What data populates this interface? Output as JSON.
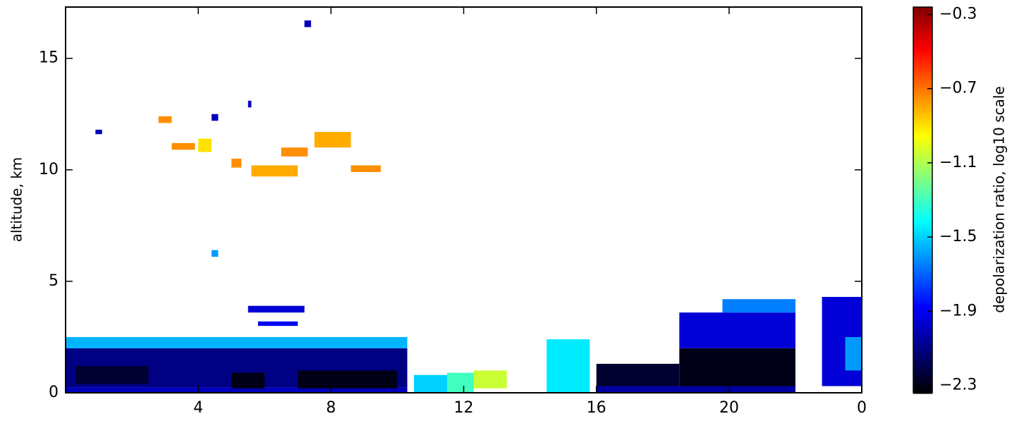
{
  "chart_data": {
    "type": "heatmap",
    "ylabel": "altitude, km",
    "colorbar_label": "depolarization ratio, log10 scale",
    "xlim": [
      0,
      24
    ],
    "ylim": [
      0,
      17.3
    ],
    "xticks": [
      4,
      8,
      12,
      16,
      20,
      {
        "value": 24,
        "label": "0"
      }
    ],
    "yticks": [
      0,
      5,
      10,
      15
    ],
    "clim": [
      -2.34,
      -0.26
    ],
    "cticks": [
      {
        "value": -2.3,
        "label": "−2.3"
      },
      {
        "value": -1.9,
        "label": "−1.9"
      },
      {
        "value": -1.5,
        "label": "−1.5"
      },
      {
        "value": -1.1,
        "label": "−1.1"
      },
      {
        "value": -0.7,
        "label": "−0.7"
      },
      {
        "value": -0.3,
        "label": "−0.3"
      }
    ],
    "colormap": [
      "#000000",
      "#00007f",
      "#0000ff",
      "#0080ff",
      "#00ffff",
      "#80ff80",
      "#ffff00",
      "#ff8000",
      "#ff0000",
      "#800000"
    ],
    "cells": [
      {
        "x": [
          0,
          10.3
        ],
        "y": [
          0,
          0.25
        ],
        "value": -2.0
      },
      {
        "x": [
          0,
          10.3
        ],
        "y": [
          0.25,
          2.0
        ],
        "value": -2.1
      },
      {
        "x": [
          0,
          10.3
        ],
        "y": [
          2.0,
          2.5
        ],
        "value": -1.55
      },
      {
        "x": [
          5.0,
          6.0
        ],
        "y": [
          0.2,
          0.9
        ],
        "value": -2.3
      },
      {
        "x": [
          7.0,
          10.0
        ],
        "y": [
          0.2,
          1.0
        ],
        "value": -2.3
      },
      {
        "x": [
          0.3,
          2.5
        ],
        "y": [
          0.4,
          1.2
        ],
        "value": -2.25
      },
      {
        "x": [
          5.5,
          7.2
        ],
        "y": [
          3.6,
          3.9
        ],
        "value": -1.95
      },
      {
        "x": [
          5.8,
          7.0
        ],
        "y": [
          3.0,
          3.2
        ],
        "value": -1.9
      },
      {
        "x": [
          4.4,
          4.6
        ],
        "y": [
          6.1,
          6.4
        ],
        "value": -1.6
      },
      {
        "x": [
          2.8,
          3.2
        ],
        "y": [
          12.1,
          12.4
        ],
        "value": -0.75
      },
      {
        "x": [
          3.2,
          3.9
        ],
        "y": [
          10.9,
          11.2
        ],
        "value": -0.75
      },
      {
        "x": [
          4.0,
          4.4
        ],
        "y": [
          10.8,
          11.4
        ],
        "value": -0.9
      },
      {
        "x": [
          5.0,
          5.3
        ],
        "y": [
          10.1,
          10.5
        ],
        "value": -0.75
      },
      {
        "x": [
          5.6,
          7.0
        ],
        "y": [
          9.7,
          10.2
        ],
        "value": -0.8
      },
      {
        "x": [
          6.5,
          7.3
        ],
        "y": [
          10.6,
          11.0
        ],
        "value": -0.75
      },
      {
        "x": [
          7.5,
          8.6
        ],
        "y": [
          11.0,
          11.7
        ],
        "value": -0.8
      },
      {
        "x": [
          8.6,
          9.5
        ],
        "y": [
          9.9,
          10.2
        ],
        "value": -0.75
      },
      {
        "x": [
          4.4,
          4.6
        ],
        "y": [
          12.2,
          12.5
        ],
        "value": -2.0
      },
      {
        "x": [
          5.5,
          5.6
        ],
        "y": [
          12.8,
          13.1
        ],
        "value": -2.0
      },
      {
        "x": [
          0.9,
          1.1
        ],
        "y": [
          11.6,
          11.8
        ],
        "value": -2.0
      },
      {
        "x": [
          7.2,
          7.4
        ],
        "y": [
          16.4,
          16.7
        ],
        "value": -2.0
      },
      {
        "x": [
          10.5,
          11.5
        ],
        "y": [
          0,
          0.8
        ],
        "value": -1.5
      },
      {
        "x": [
          11.5,
          12.3
        ],
        "y": [
          0,
          0.9
        ],
        "value": -1.3
      },
      {
        "x": [
          12.3,
          13.3
        ],
        "y": [
          0.2,
          1.0
        ],
        "value": -1.05
      },
      {
        "x": [
          14.5,
          15.8
        ],
        "y": [
          0,
          2.4
        ],
        "value": -1.45
      },
      {
        "x": [
          16.0,
          22.0
        ],
        "y": [
          0,
          0.3
        ],
        "value": -2.05
      },
      {
        "x": [
          16.0,
          18.5
        ],
        "y": [
          0.3,
          1.3
        ],
        "value": -2.25
      },
      {
        "x": [
          18.5,
          22.0
        ],
        "y": [
          0.3,
          2.0
        ],
        "value": -2.3
      },
      {
        "x": [
          18.5,
          22.0
        ],
        "y": [
          2.0,
          3.6
        ],
        "value": -1.95
      },
      {
        "x": [
          19.8,
          22.0
        ],
        "y": [
          3.6,
          4.2
        ],
        "value": -1.65
      },
      {
        "x": [
          22.8,
          24.0
        ],
        "y": [
          0.3,
          4.3
        ],
        "value": -1.95
      },
      {
        "x": [
          23.5,
          24.0
        ],
        "y": [
          1.0,
          2.5
        ],
        "value": -1.6
      }
    ]
  }
}
